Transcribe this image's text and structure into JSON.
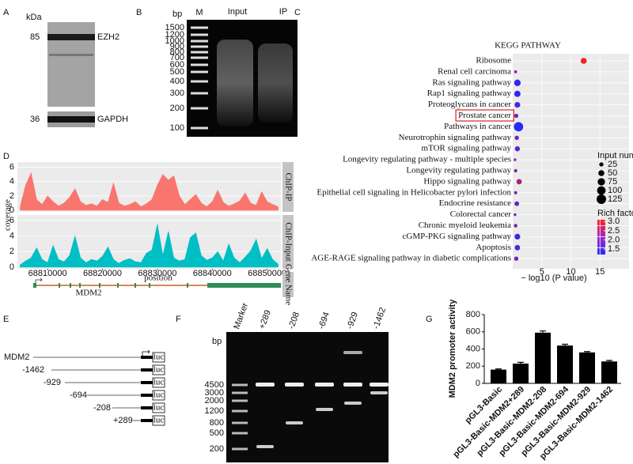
{
  "panel_labels": [
    "A",
    "B",
    "C",
    "D",
    "E",
    "F",
    "G"
  ],
  "panel_a": {
    "unit": "kDa",
    "bands": [
      {
        "size": "85",
        "label": "EZH2"
      },
      {
        "size": "36",
        "label": "GAPDH"
      }
    ]
  },
  "panel_b": {
    "unit": "bp",
    "lanes": [
      "M",
      "Input",
      "IP"
    ],
    "ladder": [
      "1500",
      "1200",
      "1000",
      "900",
      "800",
      "700",
      "600",
      "500",
      "400",
      "300",
      "200",
      "100"
    ]
  },
  "chart_data": [
    {
      "type": "scatter",
      "title": "KEGG PATHWAY",
      "x_label": "− log10 (P value)",
      "categories": [
        "Ribosome",
        "Renal cell carcinoma",
        "Ras signaling pathway",
        "Rap1 signaling pathway",
        "Proteoglycans in cancer",
        "Prostate cancer",
        "Pathways in cancer",
        "Neurotrophin signaling pathway",
        "mTOR signaling pathway",
        "Longevity regulating pathway - multiple species",
        "Longevity regulating pathway",
        "Hippo signaling pathway",
        "Epithelial cell signaling in Helicobacter pylori infection",
        "Endocrine resistance",
        "Colorectal cancer",
        "Chronic myeloid leukemia",
        "cGMP-PKG signaling pathway",
        "Apoptosis",
        "AGE-RAGE signaling pathway in diabetic complications"
      ],
      "values": [
        12.2,
        0.5,
        0.8,
        0.8,
        0.8,
        0.6,
        1.0,
        0.7,
        0.8,
        0.4,
        0.5,
        1.1,
        0.5,
        0.7,
        0.4,
        0.5,
        0.8,
        0.8,
        0.6
      ],
      "sizes": [
        50,
        12,
        60,
        55,
        45,
        25,
        120,
        25,
        35,
        10,
        15,
        40,
        15,
        30,
        10,
        18,
        45,
        40,
        25
      ],
      "rich_factor": [
        3.0,
        2.0,
        1.3,
        1.3,
        1.5,
        1.9,
        1.2,
        1.8,
        1.6,
        2.0,
        1.9,
        2.3,
        1.9,
        1.7,
        1.9,
        1.9,
        1.4,
        1.5,
        1.8
      ],
      "xlim": [
        0,
        20
      ],
      "xticks": [
        5,
        10,
        15
      ],
      "colorlim": [
        1.2,
        3.1
      ],
      "colors": [
        "#2828ff",
        "#ff1e1e"
      ],
      "background": "#ebebeb",
      "highlight_index": 5,
      "highlight_color": "#e02020",
      "size_legend": {
        "title": "Input number",
        "values": [
          25,
          50,
          75,
          100,
          125
        ]
      },
      "color_legend": {
        "title": "Rich factor",
        "ticks": [
          {
            "value": 3,
            "label": "3.0"
          },
          2.5,
          {
            "value": 2,
            "label": "2.0"
          },
          1.5
        ]
      }
    },
    {
      "type": "area",
      "y_label": "coverage",
      "x_label": "position",
      "x": [
        68805000,
        68806000,
        68807000,
        68808000,
        68809000,
        68810000,
        68811000,
        68812000,
        68813000,
        68814000,
        68815000,
        68816000,
        68817000,
        68818000,
        68819000,
        68820000,
        68821000,
        68822000,
        68823000,
        68824000,
        68825000,
        68826000,
        68827000,
        68828000,
        68829000,
        68830000,
        68831000,
        68832000,
        68833000,
        68834000,
        68835000,
        68836000,
        68837000,
        68838000,
        68839000,
        68840000,
        68841000,
        68842000,
        68843000,
        68844000,
        68845000,
        68846000,
        68847000,
        68848000,
        68849000,
        68850000,
        68851000,
        68852000
      ],
      "series": [
        {
          "name": "ChIP-IP",
          "color": "#f8766d",
          "values": [
            0.5,
            3.5,
            5.2,
            1.5,
            0.8,
            2.0,
            1.2,
            0.6,
            1.0,
            1.8,
            3.0,
            1.2,
            0.7,
            0.9,
            0.6,
            1.5,
            1.1,
            3.8,
            1.0,
            0.6,
            0.8,
            1.2,
            0.5,
            0.9,
            1.5,
            3.5,
            5.0,
            4.2,
            4.8,
            2.0,
            0.8,
            1.5,
            2.2,
            1.0,
            0.5,
            1.2,
            2.8,
            1.1,
            0.6,
            0.9,
            1.3,
            2.4,
            1.0,
            0.7,
            2.6,
            1.2,
            0.8,
            0.5
          ]
        },
        {
          "name": "ChIP-Input",
          "color": "#00bfc4",
          "values": [
            0.3,
            0.8,
            1.2,
            2.5,
            1.0,
            0.6,
            2.8,
            1.0,
            0.7,
            1.5,
            4.0,
            1.2,
            0.6,
            1.0,
            0.8,
            1.4,
            2.6,
            1.0,
            0.5,
            0.9,
            1.1,
            0.7,
            0.6,
            1.8,
            2.2,
            5.5,
            1.5,
            4.6,
            1.2,
            0.8,
            1.0,
            3.8,
            4.4,
            1.5,
            0.9,
            1.2,
            2.0,
            0.8,
            3.0,
            1.2,
            0.6,
            1.3,
            2.1,
            3.6,
            1.1,
            2.4,
            1.0,
            0.4
          ]
        }
      ],
      "xlim": [
        68804500,
        68852500
      ],
      "xticks": [
        68810000,
        68820000,
        68830000,
        68840000,
        68850000
      ],
      "ylim": [
        0,
        6.5
      ],
      "yticks": [
        0,
        2,
        4,
        6
      ],
      "background": "#ebebeb",
      "gene": {
        "name": "MDM2",
        "strip": "Gene Name"
      }
    },
    {
      "type": "bar",
      "y_label": "MDM2 promoter activity",
      "categories": [
        "pGL3-Basic",
        "pGL3-Basic-MDM2+289",
        "pGL3-Basic-MDM2-208",
        "pGL3-Basic-MDM2-694",
        "pGL3-Basic-MDM2-929",
        "pGL3-Basic-MDM2-1462"
      ],
      "values": [
        160,
        230,
        590,
        440,
        360,
        255
      ],
      "errors": [
        8,
        15,
        20,
        15,
        10,
        12
      ],
      "color": "#000000",
      "ylim": [
        0,
        800
      ],
      "yticks": [
        0,
        200,
        400,
        600,
        800
      ]
    }
  ],
  "panel_e": {
    "constructs": [
      {
        "label": "MDM2",
        "reporter": "luc"
      },
      {
        "label": "-1462",
        "reporter": "luc"
      },
      {
        "label": "-929",
        "reporter": "luc"
      },
      {
        "label": "-694",
        "reporter": "luc"
      },
      {
        "label": "-208",
        "reporter": "luc"
      },
      {
        "label": "+289",
        "reporter": "luc"
      }
    ]
  },
  "panel_f": {
    "unit": "bp",
    "lanes": [
      "Marker",
      "+289",
      "-208",
      "-694",
      "-929",
      "-1462"
    ],
    "ladder": [
      "4500",
      "3000",
      "2000",
      "1200",
      "800",
      "500",
      "200"
    ]
  }
}
